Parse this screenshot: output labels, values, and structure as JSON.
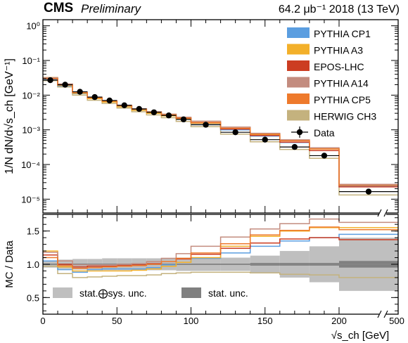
{
  "header": {
    "experiment": "CMS",
    "status": "Preliminary",
    "luminosity": "64.2 μb⁻¹ 2018 (13 TeV)"
  },
  "colors": {
    "PYTHIA CP1": "#5b9ee0",
    "PYTHIA A3": "#f3b02a",
    "EPOS-LHC": "#cc3d22",
    "PYTHIA A14": "#c38c7f",
    "PYTHIA CP5": "#ee7a2c",
    "HERWIG CH3": "#c4b27e",
    "stat_sys_band": "#bfbfbf",
    "stat_band": "#808080"
  },
  "chart_data": {
    "type": "histogram",
    "x_axis": {
      "label": "√s_ch [GeV]",
      "ticks": [
        "0",
        "50",
        "100",
        "150",
        "200",
        "500"
      ],
      "break_after": 200
    },
    "top_panel": {
      "ylabel": "1/N dN/d√s_ch [GeV⁻¹]",
      "yscale": "log",
      "ylim": [
        4e-06,
        1.5
      ],
      "ytick_labels": [
        "10⁰",
        "10⁻¹",
        "10⁻²",
        "10⁻³",
        "10⁻⁴",
        "10⁻⁵"
      ]
    },
    "bottom_panel": {
      "ylabel": "MC / Data",
      "ylim": [
        0.25,
        1.75
      ],
      "ytick_labels": [
        "0.5",
        "1.0",
        "1.5"
      ]
    },
    "bin_edges": [
      0,
      10,
      20,
      30,
      40,
      50,
      60,
      70,
      80,
      90,
      100,
      120,
      140,
      160,
      180,
      200,
      500
    ],
    "data": {
      "name": "Data",
      "values": [
        0.027,
        0.02,
        0.0125,
        0.0088,
        0.007,
        0.0051,
        0.004,
        0.0032,
        0.0026,
        0.002,
        0.0014,
        0.00085,
        0.00052,
        0.00032,
        0.00018,
        1.65e-05
      ]
    },
    "series": [
      {
        "name": "PYTHIA CP1",
        "ratio": [
          1.05,
          0.92,
          0.88,
          0.92,
          0.93,
          0.93,
          0.93,
          0.95,
          0.99,
          1.03,
          1.09,
          1.17,
          1.27,
          1.35,
          1.4,
          1.45
        ]
      },
      {
        "name": "PYTHIA A3",
        "ratio": [
          1.2,
          0.96,
          0.9,
          0.9,
          0.9,
          0.9,
          0.91,
          0.93,
          0.97,
          1.03,
          1.1,
          1.27,
          1.42,
          1.5,
          1.55,
          1.55
        ]
      },
      {
        "name": "EPOS-LHC",
        "ratio": [
          1.14,
          1.0,
          0.96,
          0.97,
          0.97,
          0.98,
          0.99,
          1.01,
          1.04,
          1.08,
          1.15,
          1.24,
          1.32,
          1.38,
          1.4,
          1.37
        ]
      },
      {
        "name": "PYTHIA A14",
        "ratio": [
          1.18,
          1.05,
          0.99,
          0.99,
          0.99,
          1.0,
          1.01,
          1.04,
          1.09,
          1.16,
          1.27,
          1.41,
          1.53,
          1.61,
          1.68,
          1.63
        ]
      },
      {
        "name": "PYTHIA CP5",
        "ratio": [
          1.1,
          0.98,
          0.94,
          0.95,
          0.96,
          0.97,
          0.98,
          1.0,
          1.04,
          1.09,
          1.17,
          1.31,
          1.44,
          1.51,
          1.56,
          1.52
        ]
      },
      {
        "name": "HERWIG CH3",
        "ratio": [
          0.97,
          0.86,
          0.8,
          0.81,
          0.82,
          0.83,
          0.83,
          0.84,
          0.86,
          0.87,
          0.88,
          0.88,
          0.87,
          0.85,
          0.84,
          0.8
        ]
      }
    ],
    "uncertainty": {
      "stat_sys_half_width": [
        0.05,
        0.07,
        0.08,
        0.08,
        0.09,
        0.09,
        0.09,
        0.09,
        0.09,
        0.1,
        0.1,
        0.1,
        0.13,
        0.2,
        0.27,
        0.4
      ],
      "stat_half_width": [
        0.01,
        0.01,
        0.01,
        0.01,
        0.01,
        0.01,
        0.01,
        0.01,
        0.01,
        0.01,
        0.01,
        0.01,
        0.02,
        0.02,
        0.02,
        0.05
      ]
    },
    "legend": {
      "placement": "top-right",
      "entries": [
        "PYTHIA CP1",
        "PYTHIA A3",
        "EPOS-LHC",
        "PYTHIA A14",
        "PYTHIA CP5",
        "HERWIG CH3",
        "Data"
      ]
    },
    "ratio_legend": [
      "stat.⨁sys. unc.",
      "stat. unc."
    ]
  }
}
